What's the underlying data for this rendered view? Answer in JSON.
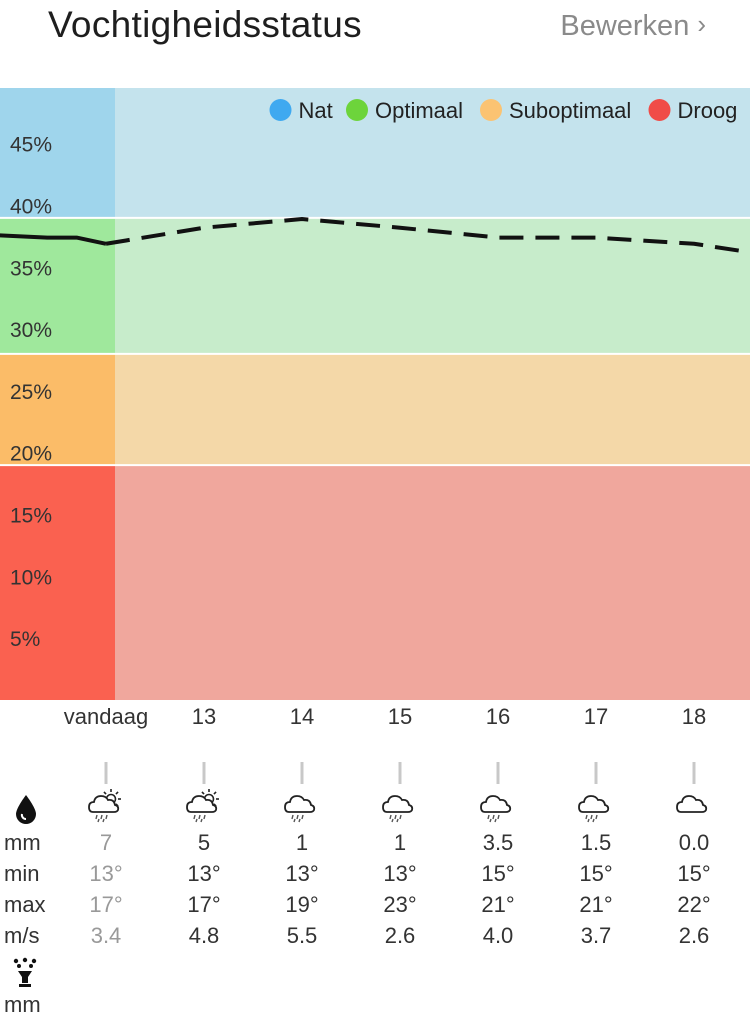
{
  "header": {
    "title": "Vochtigheidsstatus",
    "edit_label": "Bewerken"
  },
  "chart_data": {
    "type": "area",
    "title": "",
    "xlabel": "",
    "ylabel": "",
    "ylim": [
      0,
      49.5
    ],
    "y_ticks": [
      "45%",
      "40%",
      "35%",
      "30%",
      "25%",
      "20%",
      "15%",
      "10%",
      "5%"
    ],
    "bands": [
      {
        "name": "Nat",
        "from": 39,
        "to": 49.5,
        "color": "#c4e3ed",
        "side_color": "#9fd5ec"
      },
      {
        "name": "Optimaal",
        "from": 28,
        "to": 39,
        "color": "#c7eccb",
        "side_color": "#9fe89c"
      },
      {
        "name": "Suboptimaal",
        "from": 19,
        "to": 28,
        "color": "#f4d8a8",
        "side_color": "#fbbc68"
      },
      {
        "name": "Droog",
        "from": 0,
        "to": 19,
        "color": "#f0a79d",
        "side_color": "#fa6150"
      }
    ],
    "legend": [
      {
        "name": "Nat",
        "color": "#3fa9f0"
      },
      {
        "name": "Optimaal",
        "color": "#6dd43b"
      },
      {
        "name": "Suboptimaal",
        "color": "#fbc372"
      },
      {
        "name": "Droog",
        "color": "#f04c48"
      }
    ],
    "legend_position": "top-right",
    "series": [
      {
        "style": "solid",
        "x": [
          -1.15,
          -0.6,
          -0.3,
          0
        ],
        "y": [
          37.6,
          37.4,
          37.4,
          36.9
        ]
      },
      {
        "style": "dashed",
        "x": [
          0,
          1,
          2,
          3,
          4,
          5,
          6,
          6.5
        ],
        "y": [
          36.9,
          38.2,
          38.9,
          38.2,
          37.4,
          37.4,
          36.9,
          36.3
        ]
      }
    ]
  },
  "days": [
    "vandaag",
    "13",
    "14",
    "15",
    "16",
    "17",
    "18"
  ],
  "weather": {
    "icons": [
      "cloud-sun-rain-icon",
      "cloud-sun-rain-icon",
      "cloud-rain-icon",
      "cloud-rain-icon",
      "cloud-rain-icon",
      "cloud-rain-icon",
      "cloud-icon"
    ],
    "labels": {
      "mm": "mm",
      "min": "min",
      "max": "max",
      "wind": "m/s",
      "irrigation_mm": "mm"
    },
    "rain_mm": [
      "7",
      "5",
      "1",
      "1",
      "3.5",
      "1.5",
      "0.0"
    ],
    "temp_min": [
      "13°",
      "13°",
      "13°",
      "13°",
      "15°",
      "15°",
      "15°"
    ],
    "temp_max": [
      "17°",
      "17°",
      "19°",
      "23°",
      "21°",
      "21°",
      "22°"
    ],
    "wind": [
      "3.4",
      "4.8",
      "5.5",
      "2.6",
      "4.0",
      "3.7",
      "2.6"
    ]
  }
}
